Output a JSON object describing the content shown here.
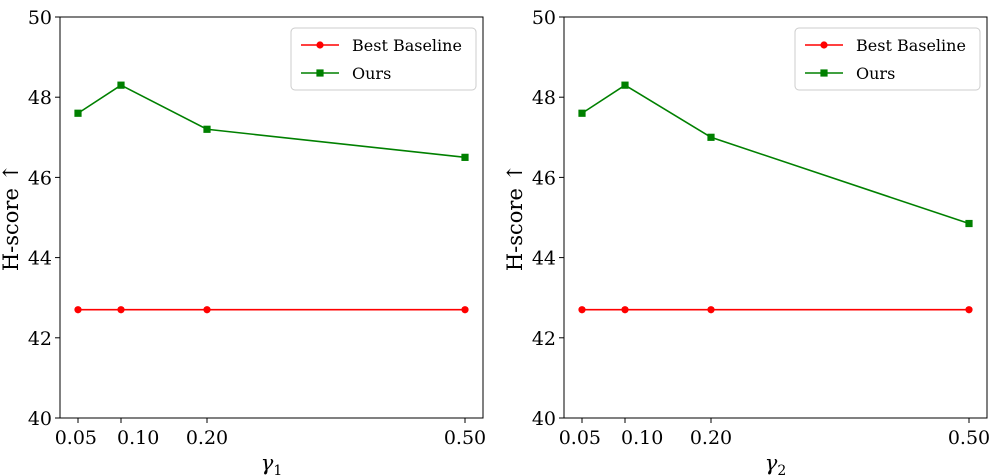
{
  "chart_data": [
    {
      "type": "line",
      "x": [
        0.05,
        0.1,
        0.2,
        0.5
      ],
      "xtick_labels": [
        "0.05",
        "0.10",
        "0.20",
        "0.50"
      ],
      "xlabel_symbol": "γ",
      "xlabel_sub": "1",
      "ylabel": "H-score ↑",
      "ylim": [
        40,
        50
      ],
      "yticks": [
        40,
        42,
        44,
        46,
        48,
        50
      ],
      "grid": false,
      "legend_position": "top-right",
      "series": [
        {
          "name": "Best Baseline",
          "color": "#ff0000",
          "marker": "circle",
          "values": [
            42.7,
            42.7,
            42.7,
            42.7
          ]
        },
        {
          "name": "Ours",
          "color": "#008000",
          "marker": "square",
          "values": [
            47.6,
            48.3,
            47.2,
            46.5
          ]
        }
      ]
    },
    {
      "type": "line",
      "x": [
        0.05,
        0.1,
        0.2,
        0.5
      ],
      "xtick_labels": [
        "0.05",
        "0.10",
        "0.20",
        "0.50"
      ],
      "xlabel_symbol": "γ",
      "xlabel_sub": "2",
      "ylabel": "H-score ↑",
      "ylim": [
        40,
        50
      ],
      "yticks": [
        40,
        42,
        44,
        46,
        48,
        50
      ],
      "grid": false,
      "legend_position": "top-right",
      "series": [
        {
          "name": "Best Baseline",
          "color": "#ff0000",
          "marker": "circle",
          "values": [
            42.7,
            42.7,
            42.7,
            42.7
          ]
        },
        {
          "name": "Ours",
          "color": "#008000",
          "marker": "square",
          "values": [
            47.6,
            48.3,
            47.0,
            44.85
          ]
        }
      ]
    }
  ]
}
